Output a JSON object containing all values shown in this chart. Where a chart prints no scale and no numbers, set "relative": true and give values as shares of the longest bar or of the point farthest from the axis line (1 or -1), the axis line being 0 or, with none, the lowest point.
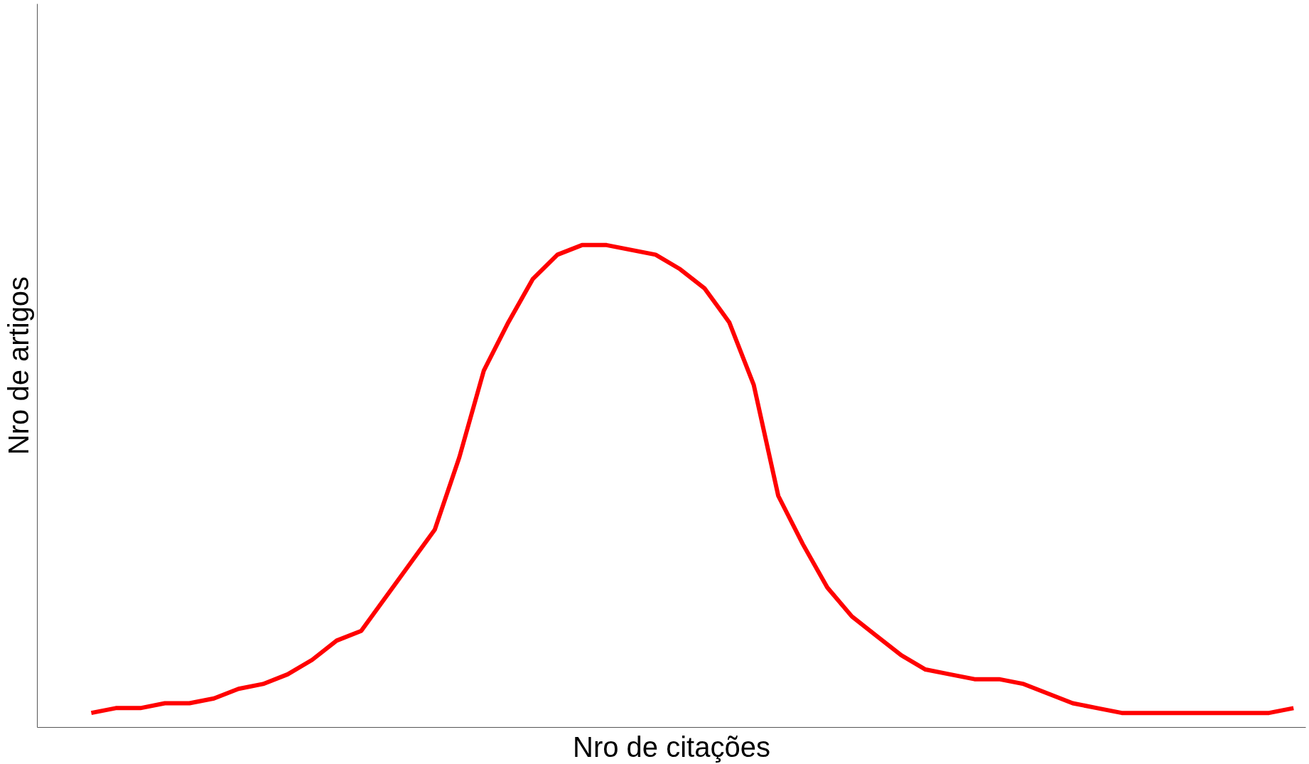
{
  "chart_data": {
    "type": "line",
    "relative": true,
    "xlabel": "Nro de citações",
    "ylabel": "Nro de artigos",
    "categories": [
      null,
      null,
      null,
      null,
      null,
      null,
      null,
      null,
      null,
      null,
      null,
      null,
      null,
      null,
      null,
      null,
      null,
      null,
      null,
      null,
      null,
      null,
      null,
      null,
      null,
      null,
      null,
      null,
      null,
      null,
      null,
      null,
      null,
      null,
      null,
      null,
      null,
      null,
      null,
      null,
      null,
      null,
      null,
      null,
      null,
      null,
      null,
      null,
      null,
      null
    ],
    "series": [
      {
        "color": "#ff0000",
        "values": [
          0.03,
          0.04,
          0.04,
          0.05,
          0.05,
          0.06,
          0.08,
          0.09,
          0.11,
          0.14,
          0.18,
          0.2,
          0.27,
          0.34,
          0.41,
          0.56,
          0.74,
          0.84,
          0.93,
          0.98,
          1.0,
          1.0,
          0.99,
          0.98,
          0.95,
          0.91,
          0.84,
          0.71,
          0.48,
          0.38,
          0.29,
          0.23,
          0.19,
          0.15,
          0.12,
          0.11,
          0.1,
          0.1,
          0.09,
          0.07,
          0.05,
          0.04,
          0.03,
          0.03,
          0.03,
          0.03,
          0.03,
          0.03,
          0.03,
          0.04
        ]
      }
    ],
    "line_style": "solid",
    "marker": "none"
  }
}
